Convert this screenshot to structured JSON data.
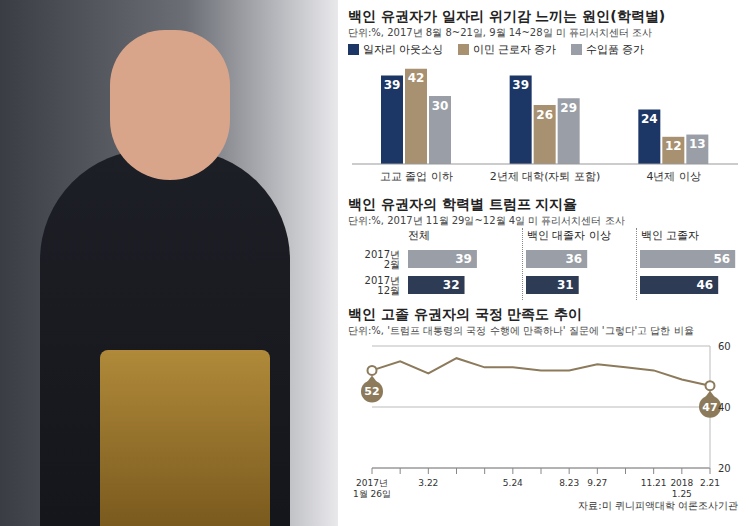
{
  "chart_data": [
    {
      "type": "bar",
      "title": "백인 유권자가 일자리 위기감 느끼는 원인(학력별)",
      "subtitle": "단위:%, 2017년 8월 8~21일, 9월 14~28일 미 퓨리서치센터 조사",
      "categories": [
        "고교 졸업 이하",
        "2년제 대학(자퇴 포함)",
        "4년제 이상"
      ],
      "series": [
        {
          "name": "일자리 아웃소싱",
          "color": "#1c3766",
          "values": [
            39,
            39,
            24
          ]
        },
        {
          "name": "이민 근로자 증가",
          "color": "#a89170",
          "values": [
            42,
            26,
            12
          ]
        },
        {
          "name": "수입품 증가",
          "color": "#9a9ea6",
          "values": [
            30,
            29,
            13
          ]
        }
      ],
      "ylim": [
        0,
        45
      ],
      "data_labels": true,
      "legend": "top",
      "tick_labels": "x"
    },
    {
      "type": "bar",
      "orientation": "horizontal",
      "title": "백인 유권자의 학력별 트럼프 지지율",
      "subtitle": "단위:%, 2017년 11월 29일~12월 4일 미 퓨리서치센터 조사",
      "categories": [
        "2017년 2월",
        "2017년 12월"
      ],
      "colors": [
        "#9a9ea6",
        "#2e3b55"
      ],
      "series": [
        {
          "name": "전체",
          "values": [
            39,
            32
          ]
        },
        {
          "name": "백인 대졸자 이상",
          "values": [
            36,
            31
          ]
        },
        {
          "name": "백인 고졸자",
          "values": [
            56,
            46
          ]
        }
      ],
      "xlim": [
        0,
        60
      ],
      "data_labels": true,
      "tick_labels": "y"
    },
    {
      "type": "line",
      "title": "백인 고졸 유권자의 국정 만족도 추이",
      "subtitle": "단위:%, '트럼프 대통령의 국정 수행에 만족하나' 질문에 '그렇다'고 답한 비율",
      "categories": [
        "2017년 1월 26일",
        null,
        "3.22",
        null,
        null,
        "5.24",
        null,
        "8.23",
        "9.27",
        null,
        "11.21",
        "2018 1.25",
        "2.21"
      ],
      "values": [
        52,
        55,
        51,
        56,
        53,
        53,
        52,
        52,
        54,
        53,
        52,
        49,
        47
      ],
      "color": "#8c7a5b",
      "ylim": [
        20,
        60
      ],
      "yticks": [
        20,
        40,
        60
      ],
      "grid": true,
      "annotations": [
        {
          "index": 0,
          "text": "52"
        },
        {
          "index": 12,
          "text": "47"
        }
      ],
      "source": "자료:미 퀴니피액대학 여론조사기관"
    }
  ]
}
